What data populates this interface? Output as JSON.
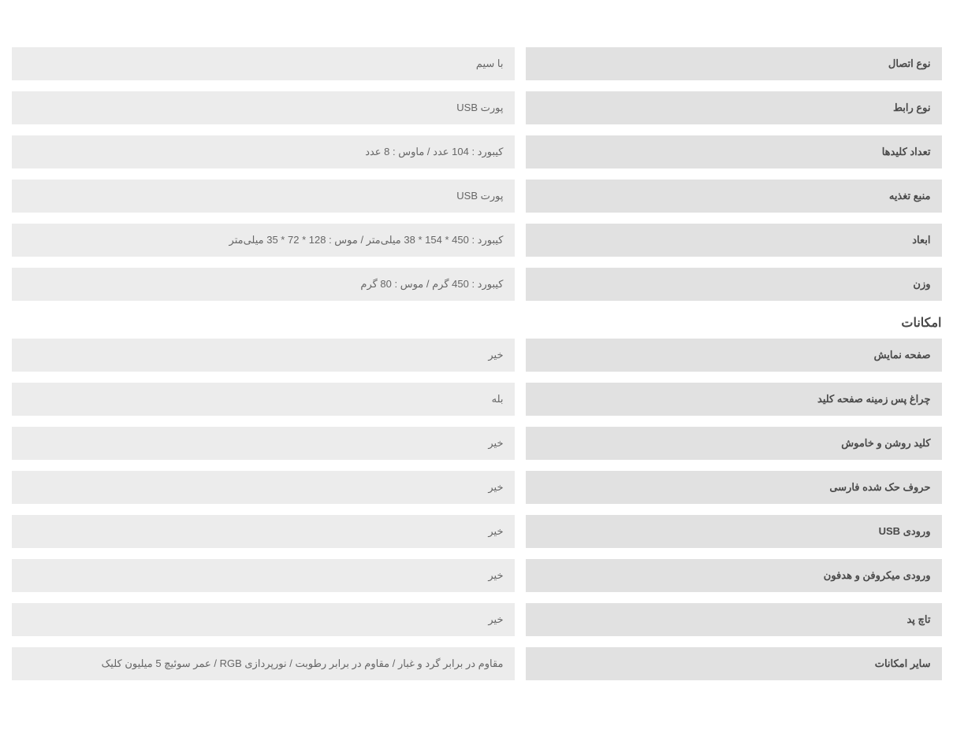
{
  "colors": {
    "label_bg": "#e1e1e1",
    "value_bg": "#ececec",
    "label_text": "#4a4a4a",
    "value_text": "#666666",
    "page_bg": "#ffffff"
  },
  "typography": {
    "label_fontsize": 13,
    "value_fontsize": 13,
    "title_fontsize": 16,
    "label_weight": "bold",
    "font_family": "Tahoma"
  },
  "layout": {
    "container_width": 1180,
    "label_col_width": 528,
    "row_gap": 14,
    "row_margin": 14,
    "cell_padding": "13px 14px"
  },
  "sections": [
    {
      "title": null,
      "rows": [
        {
          "label": "نوع اتصال",
          "value": "با سیم"
        },
        {
          "label": "نوع رابط",
          "value": "پورت USB"
        },
        {
          "label": "تعداد کلیدها",
          "value": "کیبورد : 104 عدد / ماوس : 8 عدد"
        },
        {
          "label": "منبع تغذیه",
          "value": "پورت USB"
        },
        {
          "label": "ابعاد",
          "value": "کیبورد : 450 * 154 * 38 میلی‌متر / موس : 128 * 72 * 35 میلی‌متر"
        },
        {
          "label": "وزن",
          "value": "کیبورد : 450 گرم / موس : 80 گرم"
        }
      ]
    },
    {
      "title": "امکانات",
      "rows": [
        {
          "label": "صفحه نمایش",
          "value": "خیر"
        },
        {
          "label": "چراغ پس زمینه صفحه کلید",
          "value": "بله"
        },
        {
          "label": "کلید روشن و خاموش",
          "value": "خیر"
        },
        {
          "label": "حروف حک شده فارسی",
          "value": "خیر"
        },
        {
          "label": "ورودی USB",
          "value": "خیر"
        },
        {
          "label": "ورودی میکروفن و هدفون",
          "value": "خیر"
        },
        {
          "label": "تاچ پد",
          "value": "خیر"
        },
        {
          "label": "سایر امکانات",
          "value": "مقاوم در برابر گرد و غبار / مقاوم در برابر رطوبت / نورپردازی RGB / عمر سوئیچ 5 میلیون کلیک"
        }
      ]
    }
  ]
}
